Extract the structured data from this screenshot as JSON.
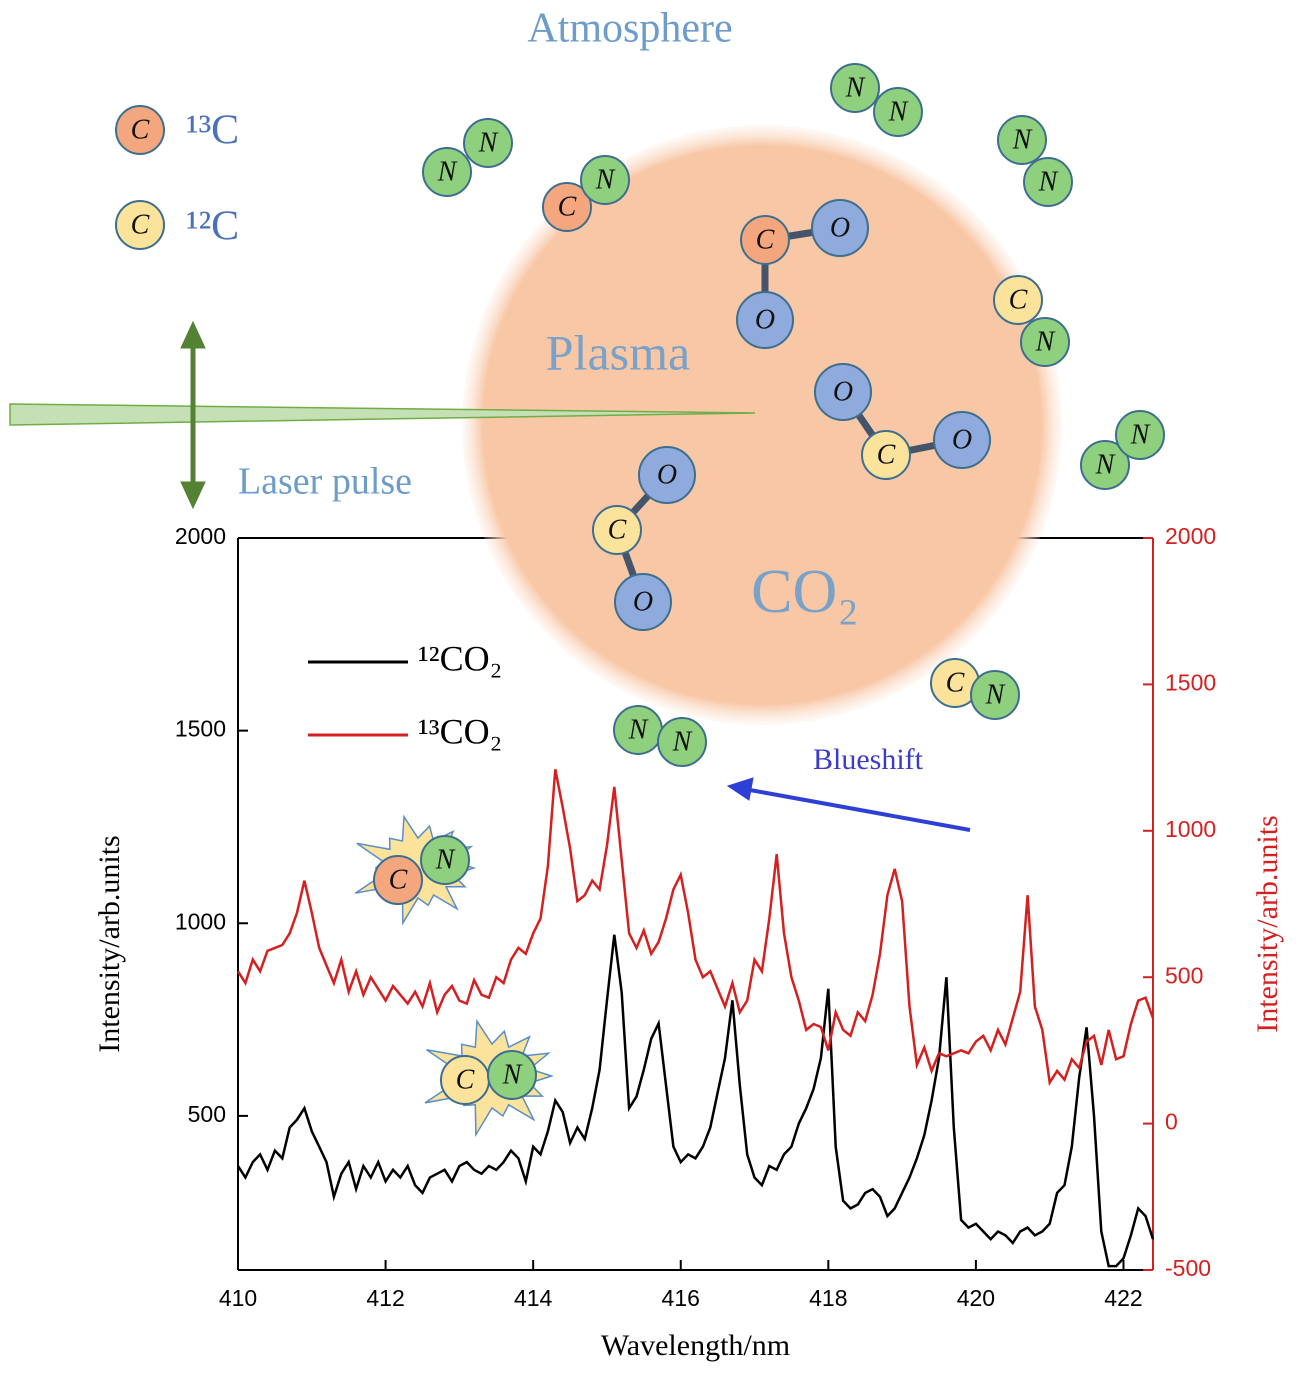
{
  "chart_data": {
    "type": "line",
    "xlabel": "Wavelength/nm",
    "ylabel": "Intensity/arb.units",
    "y2label": "Intensity/arb.units",
    "x": [
      410.0,
      410.1,
      410.2,
      410.3,
      410.4,
      410.5,
      410.6,
      410.7,
      410.8,
      410.9,
      411.0,
      411.1,
      411.2,
      411.3,
      411.4,
      411.5,
      411.6,
      411.7,
      411.8,
      411.9,
      412.0,
      412.1,
      412.2,
      412.3,
      412.4,
      412.5,
      412.6,
      412.7,
      412.8,
      412.9,
      413.0,
      413.1,
      413.2,
      413.3,
      413.4,
      413.5,
      413.6,
      413.7,
      413.8,
      413.9,
      414.0,
      414.1,
      414.2,
      414.3,
      414.4,
      414.5,
      414.6,
      414.7,
      414.8,
      414.9,
      415.0,
      415.1,
      415.2,
      415.3,
      415.4,
      415.5,
      415.6,
      415.7,
      415.8,
      415.9,
      416.0,
      416.1,
      416.2,
      416.3,
      416.4,
      416.5,
      416.6,
      416.7,
      416.8,
      416.9,
      417.0,
      417.1,
      417.2,
      417.3,
      417.4,
      417.5,
      417.6,
      417.7,
      417.8,
      417.9,
      418.0,
      418.1,
      418.2,
      418.3,
      418.4,
      418.5,
      418.6,
      418.7,
      418.8,
      418.9,
      419.0,
      419.1,
      419.2,
      419.3,
      419.4,
      419.5,
      419.6,
      419.7,
      419.8,
      419.9,
      420.0,
      420.1,
      420.2,
      420.3,
      420.4,
      420.5,
      420.6,
      420.7,
      420.8,
      420.9,
      421.0,
      421.1,
      421.2,
      421.3,
      421.4,
      421.5,
      421.6,
      421.7,
      421.8,
      421.9,
      422.0,
      422.1,
      422.2,
      422.3,
      422.4
    ],
    "series": [
      {
        "name": "¹²CO₂",
        "color": "#000000",
        "values": [
          370,
          340,
          380,
          400,
          360,
          410,
          390,
          470,
          490,
          520,
          460,
          420,
          380,
          290,
          350,
          380,
          310,
          370,
          340,
          380,
          330,
          360,
          340,
          370,
          320,
          300,
          340,
          350,
          360,
          330,
          370,
          380,
          360,
          350,
          370,
          360,
          380,
          410,
          390,
          330,
          420,
          400,
          460,
          540,
          510,
          430,
          470,
          440,
          520,
          620,
          800,
          970,
          820,
          520,
          550,
          620,
          700,
          740,
          580,
          420,
          380,
          400,
          390,
          420,
          470,
          560,
          650,
          800,
          580,
          400,
          340,
          320,
          370,
          360,
          400,
          420,
          480,
          520,
          570,
          650,
          830,
          420,
          280,
          260,
          270,
          300,
          310,
          290,
          240,
          260,
          300,
          340,
          390,
          450,
          540,
          650,
          860,
          470,
          230,
          210,
          220,
          200,
          180,
          200,
          190,
          170,
          200,
          210,
          190,
          200,
          220,
          300,
          320,
          420,
          600,
          730,
          500,
          200,
          110,
          110,
          130,
          190,
          260,
          240,
          180
        ]
      },
      {
        "name": "¹³CO₂",
        "color": "#d42020",
        "axis": "y2",
        "values": [
          520,
          480,
          560,
          520,
          590,
          600,
          610,
          650,
          720,
          830,
          720,
          600,
          540,
          480,
          560,
          450,
          520,
          440,
          500,
          460,
          420,
          470,
          440,
          410,
          450,
          400,
          480,
          380,
          440,
          470,
          420,
          410,
          490,
          440,
          430,
          500,
          480,
          560,
          600,
          580,
          650,
          700,
          880,
          1210,
          1080,
          940,
          760,
          780,
          830,
          800,
          950,
          1150,
          900,
          650,
          600,
          660,
          580,
          620,
          700,
          800,
          850,
          720,
          560,
          500,
          520,
          460,
          400,
          480,
          380,
          420,
          560,
          520,
          700,
          920,
          650,
          500,
          420,
          320,
          340,
          330,
          250,
          380,
          320,
          300,
          380,
          350,
          440,
          580,
          780,
          870,
          760,
          400,
          200,
          260,
          180,
          240,
          230,
          240,
          250,
          240,
          280,
          300,
          250,
          320,
          270,
          360,
          450,
          780,
          400,
          320,
          140,
          180,
          150,
          220,
          190,
          280,
          300,
          200,
          320,
          220,
          230,
          340,
          420,
          430,
          360
        ]
      }
    ],
    "xlim": [
      410,
      422.4
    ],
    "xticks": [
      410,
      412,
      414,
      416,
      418,
      420,
      422
    ],
    "ylim": [
      100,
      2000
    ],
    "yticks": [
      500,
      1000,
      1500,
      2000
    ],
    "y2lim": [
      -500,
      2000
    ],
    "y2ticks": [
      -500,
      0,
      500,
      1000,
      1500,
      2000
    ]
  },
  "diagram": {
    "atmosphere": "Atmosphere",
    "plasma": "Plasma",
    "laser_pulse": "Laser pulse",
    "co2": "CO₂",
    "blueshift": "Blueshift",
    "legend_13c": "¹³C",
    "legend_12c": "¹²C",
    "symbols": [
      "C",
      "N",
      "O"
    ]
  }
}
